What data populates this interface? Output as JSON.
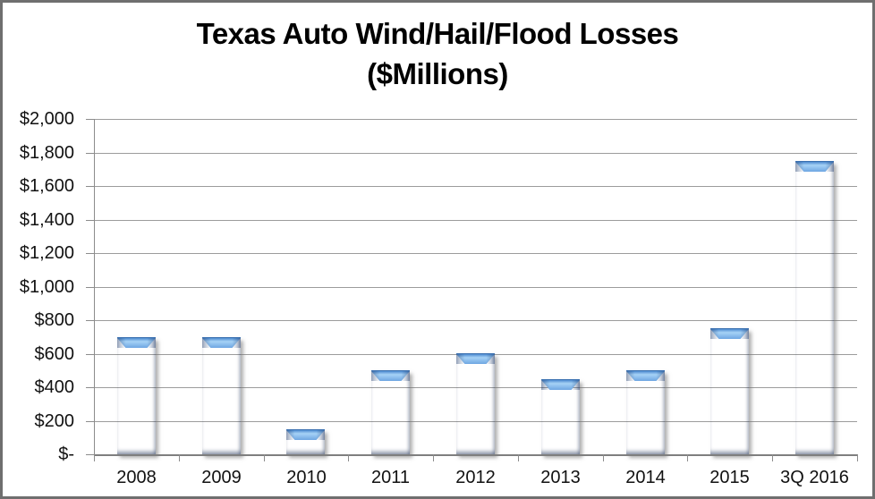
{
  "title": {
    "line1": "Texas Auto Wind/Hail/Flood Losses",
    "line2": "($Millions)"
  },
  "chart_data": {
    "type": "bar",
    "title": "Texas Auto Wind/Hail/Flood Losses ($Millions)",
    "categories": [
      "2008",
      "2009",
      "2010",
      "2011",
      "2012",
      "2013",
      "2014",
      "2015",
      "3Q 2016"
    ],
    "values": [
      700,
      700,
      150,
      500,
      600,
      450,
      500,
      750,
      1750
    ],
    "xlabel": "",
    "ylabel": "",
    "ylim": [
      0,
      2000
    ],
    "ytick_step": 200,
    "ytick_labels": [
      "$-",
      "$200",
      "$400",
      "$600",
      "$800",
      "$1,000",
      "$1,200",
      "$1,400",
      "$1,600",
      "$1,800",
      "$2,000"
    ],
    "grid": true,
    "legend": false
  },
  "colors": {
    "bar_fill": "#4a86c8",
    "bar_edge_dark": "#2b5b95",
    "bar_highlight": "#a6d2f6",
    "gridline": "#9c9c9c",
    "axis": "#7f7f7f",
    "text": "#111111",
    "frame_border": "#6f6f6f",
    "background": "#ffffff"
  }
}
